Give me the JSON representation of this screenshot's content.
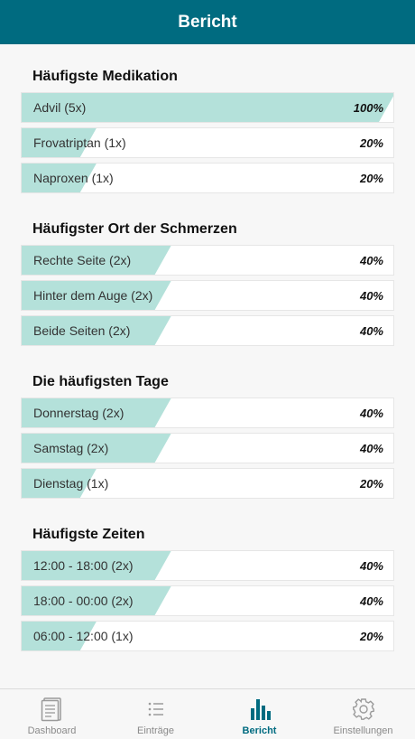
{
  "header": {
    "title": "Bericht"
  },
  "sections": [
    {
      "title": "Häufigste Medikation",
      "rows": [
        {
          "label": "Advil (5x)",
          "percent_text": "100%",
          "fraction": 1.0
        },
        {
          "label": "Frovatriptan (1x)",
          "percent_text": "20%",
          "fraction": 0.2
        },
        {
          "label": "Naproxen (1x)",
          "percent_text": "20%",
          "fraction": 0.2
        }
      ]
    },
    {
      "title": "Häufigster Ort der Schmerzen",
      "rows": [
        {
          "label": "Rechte Seite (2x)",
          "percent_text": "40%",
          "fraction": 0.4
        },
        {
          "label": "Hinter dem Auge (2x)",
          "percent_text": "40%",
          "fraction": 0.4
        },
        {
          "label": "Beide Seiten (2x)",
          "percent_text": "40%",
          "fraction": 0.4
        }
      ]
    },
    {
      "title": "Die häufigsten Tage",
      "rows": [
        {
          "label": "Donnerstag (2x)",
          "percent_text": "40%",
          "fraction": 0.4
        },
        {
          "label": "Samstag (2x)",
          "percent_text": "40%",
          "fraction": 0.4
        },
        {
          "label": "Dienstag (1x)",
          "percent_text": "20%",
          "fraction": 0.2
        }
      ]
    },
    {
      "title": "Häufigste Zeiten",
      "rows": [
        {
          "label": "12:00 - 18:00 (2x)",
          "percent_text": "40%",
          "fraction": 0.4
        },
        {
          "label": "18:00 - 00:00 (2x)",
          "percent_text": "40%",
          "fraction": 0.4
        },
        {
          "label": "06:00 - 12:00 (1x)",
          "percent_text": "20%",
          "fraction": 0.2
        }
      ]
    }
  ],
  "tabbar": {
    "items": [
      {
        "label": "Dashboard",
        "icon": "dashboard-icon",
        "active": false
      },
      {
        "label": "Einträge",
        "icon": "list-icon",
        "active": false
      },
      {
        "label": "Bericht",
        "icon": "bar-chart-icon",
        "active": true
      },
      {
        "label": "Einstellungen",
        "icon": "gear-icon",
        "active": false
      }
    ]
  },
  "colors": {
    "header_bg": "#006b80",
    "bar_fill": "#b4e1da",
    "active_tab": "#006b80",
    "inactive_tab": "#8a8a8a"
  }
}
